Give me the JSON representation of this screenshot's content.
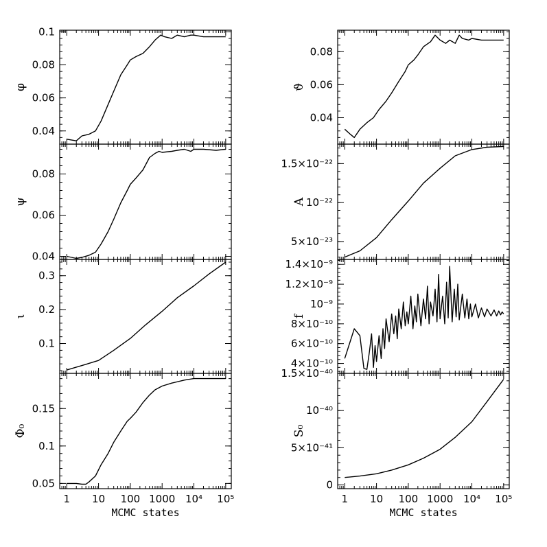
{
  "chart_data": [
    {
      "type": "line",
      "panel": "left-1",
      "ylabel": "φ",
      "xscale": "log",
      "xlim": [
        0.6,
        150000
      ],
      "ylim": [
        0.032,
        0.101
      ],
      "yticks": [
        0.04,
        0.06,
        0.08,
        0.1
      ],
      "ytick_labels": [
        "0.04",
        "0.06",
        "0.08",
        "0.1"
      ],
      "series": [
        {
          "x": [
            1,
            2,
            3,
            5,
            8,
            12,
            20,
            30,
            50,
            80,
            100,
            150,
            250,
            400,
            600,
            900,
            1200,
            2000,
            3000,
            5000,
            8000,
            10000,
            20000,
            50000,
            100000
          ],
          "y": [
            0.035,
            0.034,
            0.037,
            0.038,
            0.04,
            0.046,
            0.056,
            0.064,
            0.074,
            0.08,
            0.083,
            0.085,
            0.087,
            0.091,
            0.095,
            0.098,
            0.097,
            0.096,
            0.098,
            0.097,
            0.098,
            0.098,
            0.097,
            0.097,
            0.097
          ]
        }
      ]
    },
    {
      "type": "line",
      "panel": "left-2",
      "ylabel": "ψ",
      "xscale": "log",
      "xlim": [
        0.6,
        150000
      ],
      "ylim": [
        0.0385,
        0.0945
      ],
      "yticks": [
        0.04,
        0.06,
        0.08
      ],
      "ytick_labels": [
        "0.04",
        "0.06",
        "0.08"
      ],
      "series": [
        {
          "x": [
            1,
            2,
            3,
            5,
            8,
            12,
            20,
            30,
            50,
            80,
            100,
            150,
            250,
            400,
            600,
            800,
            1000,
            2000,
            3000,
            5000,
            8000,
            10000,
            20000,
            50000,
            100000
          ],
          "y": [
            0.04,
            0.039,
            0.0395,
            0.0405,
            0.042,
            0.046,
            0.052,
            0.058,
            0.066,
            0.072,
            0.075,
            0.078,
            0.082,
            0.088,
            0.09,
            0.091,
            0.0905,
            0.091,
            0.0915,
            0.092,
            0.091,
            0.092,
            0.092,
            0.0915,
            0.092
          ]
        }
      ]
    },
    {
      "type": "line",
      "panel": "left-3",
      "ylabel": "ι",
      "xscale": "log",
      "xlim": [
        0.6,
        150000
      ],
      "ylim": [
        0.012,
        0.348
      ],
      "yticks": [
        0.1,
        0.2,
        0.3
      ],
      "ytick_labels": [
        "0.1",
        "0.2",
        "0.3"
      ],
      "series": [
        {
          "x": [
            1,
            3,
            10,
            30,
            100,
            300,
            1000,
            3000,
            10000,
            30000,
            100000
          ],
          "y": [
            0.022,
            0.035,
            0.05,
            0.08,
            0.115,
            0.155,
            0.195,
            0.235,
            0.27,
            0.305,
            0.34
          ]
        }
      ]
    },
    {
      "type": "line",
      "panel": "left-4",
      "ylabel": "Φ₀",
      "xscale": "log",
      "xlim": [
        0.6,
        150000
      ],
      "ylim": [
        0.043,
        0.197
      ],
      "yticks": [
        0.05,
        0.1,
        0.15
      ],
      "ytick_labels": [
        "0.05",
        "0.1",
        "0.15"
      ],
      "xticks": [
        1,
        10,
        100,
        1000,
        10000,
        100000
      ],
      "xtick_labels": [
        "1",
        "10",
        "100",
        "1000",
        "10⁴",
        "10⁵"
      ],
      "xlabel": "MCMC states",
      "series": [
        {
          "x": [
            1,
            2,
            3,
            4,
            5,
            8,
            12,
            20,
            30,
            50,
            80,
            100,
            150,
            250,
            400,
            600,
            1000,
            2000,
            5000,
            10000,
            20000,
            50000,
            100000
          ],
          "y": [
            0.05,
            0.05,
            0.049,
            0.049,
            0.052,
            0.06,
            0.075,
            0.09,
            0.105,
            0.12,
            0.133,
            0.137,
            0.145,
            0.158,
            0.168,
            0.175,
            0.18,
            0.184,
            0.188,
            0.19,
            0.19,
            0.19,
            0.19
          ]
        }
      ]
    },
    {
      "type": "line",
      "panel": "right-1",
      "ylabel": "ϑ",
      "xscale": "log",
      "xlim": [
        0.6,
        150000
      ],
      "ylim": [
        0.024,
        0.093
      ],
      "yticks": [
        0.04,
        0.06,
        0.08
      ],
      "ytick_labels": [
        "0.04",
        "0.06",
        "0.08"
      ],
      "series": [
        {
          "x": [
            1,
            1.5,
            2,
            3,
            5,
            8,
            12,
            20,
            30,
            50,
            80,
            100,
            150,
            200,
            300,
            500,
            700,
            1000,
            1500,
            2000,
            3000,
            4000,
            5000,
            8000,
            10000,
            20000,
            50000,
            100000
          ],
          "y": [
            0.033,
            0.03,
            0.028,
            0.033,
            0.037,
            0.04,
            0.045,
            0.05,
            0.055,
            0.062,
            0.068,
            0.072,
            0.075,
            0.078,
            0.083,
            0.086,
            0.09,
            0.087,
            0.085,
            0.087,
            0.085,
            0.09,
            0.088,
            0.087,
            0.088,
            0.087,
            0.087,
            0.087
          ]
        }
      ]
    },
    {
      "type": "line",
      "panel": "right-2",
      "ylabel": "A",
      "xscale": "log",
      "xlim": [
        0.6,
        150000
      ],
      "ylim": [
        2.7e-23,
        1.75e-22
      ],
      "yticks": [
        5e-23,
        1e-22,
        1.5e-22
      ],
      "ytick_labels": [
        "5×10⁻²³",
        "10⁻²²",
        "1.5×10⁻²²"
      ],
      "series": [
        {
          "x": [
            1,
            3,
            10,
            30,
            100,
            300,
            1000,
            3000,
            10000,
            30000,
            100000
          ],
          "y": [
            3e-23,
            3.8e-23,
            5.5e-23,
            7.8e-23,
            1.02e-22,
            1.25e-22,
            1.44e-22,
            1.6e-22,
            1.68e-22,
            1.71e-22,
            1.72e-22
          ]
        }
      ]
    },
    {
      "type": "line",
      "panel": "right-3",
      "ylabel": "f",
      "xscale": "log",
      "xlim": [
        0.6,
        150000
      ],
      "ylim": [
        3e-10,
        1.45e-09
      ],
      "yticks": [
        4e-10,
        6e-10,
        8e-10,
        1e-09,
        1.2e-09,
        1.4e-09
      ],
      "ytick_labels": [
        "4×10⁻¹⁰",
        "6×10⁻¹⁰",
        "8×10⁻¹⁰",
        "10⁻⁹",
        "1.2×10⁻⁹",
        "1.4×10⁻⁹"
      ],
      "series": [
        {
          "x": [
            1,
            2,
            3,
            4,
            5,
            6,
            7,
            8,
            9,
            10,
            12,
            14,
            16,
            18,
            20,
            25,
            30,
            35,
            40,
            45,
            50,
            60,
            70,
            80,
            90,
            100,
            120,
            140,
            160,
            180,
            200,
            250,
            300,
            350,
            400,
            450,
            500,
            600,
            700,
            800,
            900,
            1000,
            1200,
            1400,
            1600,
            1800,
            2000,
            2400,
            2800,
            3200,
            3600,
            4000,
            5000,
            6000,
            7000,
            8000,
            9000,
            10000,
            13000,
            16000,
            20000,
            25000,
            30000,
            40000,
            50000,
            60000,
            70000,
            80000,
            90000,
            100000
          ],
          "y": [
            4.5e-10,
            7.5e-10,
            6.8e-10,
            3.5e-10,
            3.4e-10,
            5.2e-10,
            7e-10,
            3.6e-10,
            5.8e-10,
            4.2e-10,
            6.8e-10,
            4.5e-10,
            7.5e-10,
            5.5e-10,
            8.5e-10,
            6.2e-10,
            9e-10,
            7e-10,
            8.8e-10,
            6.5e-10,
            9.5e-10,
            7.5e-10,
            1.02e-09,
            7.8e-10,
            9.2e-10,
            8e-10,
            1.08e-09,
            7.5e-10,
            9.8e-10,
            8.2e-10,
            1.1e-09,
            7.8e-10,
            1.05e-09,
            8.5e-10,
            1.18e-09,
            8e-10,
            1.02e-09,
            8.8e-10,
            1.15e-09,
            8.2e-10,
            1.3e-09,
            8.5e-10,
            1.08e-09,
            8e-10,
            1.22e-09,
            8.6e-10,
            1.38e-09,
            8.2e-10,
            1.15e-09,
            8.7e-10,
            1.2e-09,
            8.4e-10,
            1.1e-09,
            8.6e-10,
            1.05e-09,
            8.5e-10,
            1e-09,
            8.7e-10,
            1e-09,
            8.6e-10,
            9.6e-10,
            8.7e-10,
            9.5e-10,
            8.8e-10,
            9.4e-10,
            8.8e-10,
            9.3e-10,
            8.9e-10,
            9.2e-10,
            9e-10
          ]
        }
      ]
    },
    {
      "type": "line",
      "panel": "right-4",
      "ylabel": "S₀",
      "xscale": "log",
      "xlim": [
        0.6,
        150000
      ],
      "ylim": [
        -5e-42,
        1.5e-40
      ],
      "yticks": [
        0,
        5e-41,
        1e-40,
        1.5e-40
      ],
      "ytick_labels": [
        "0",
        "5×10⁻⁴¹",
        "10⁻⁴⁰",
        "1.5×10⁻⁴⁰"
      ],
      "xticks": [
        1,
        10,
        100,
        1000,
        10000,
        100000
      ],
      "xtick_labels": [
        "1",
        "10",
        "100",
        "1000",
        "10⁴",
        "10⁵"
      ],
      "xlabel": "MCMC states",
      "series": [
        {
          "x": [
            1,
            3,
            10,
            30,
            100,
            300,
            1000,
            3000,
            10000,
            30000,
            100000
          ],
          "y": [
            1e-41,
            1.2e-41,
            1.5e-41,
            2e-41,
            2.7e-41,
            3.6e-41,
            4.8e-41,
            6.4e-41,
            8.5e-41,
            1.12e-40,
            1.42e-40
          ]
        }
      ]
    }
  ]
}
